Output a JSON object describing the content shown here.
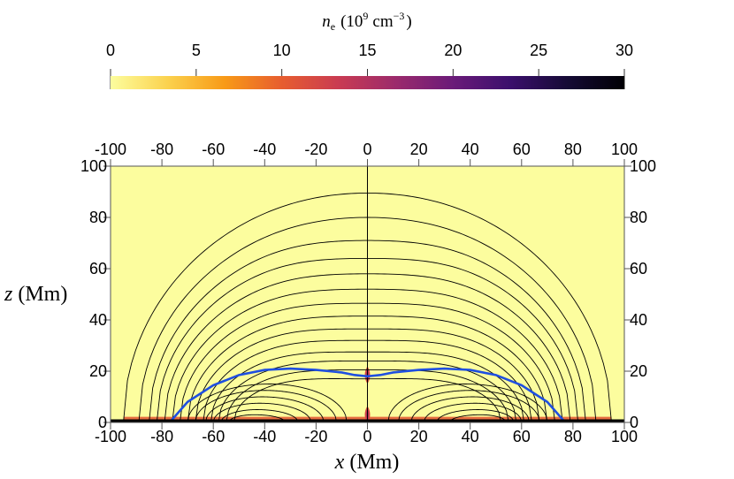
{
  "chart_data": {
    "type": "heatmap",
    "colorbar": {
      "label_var": "n",
      "label_sub": "e",
      "label_unit_base": "(10",
      "label_unit_exp": "9",
      "label_unit_cm": "cm",
      "label_unit_cm_exp": "−3",
      "label_close": ")",
      "range": [
        0,
        30
      ],
      "ticks": [
        "0",
        "5",
        "10",
        "15",
        "20",
        "25",
        "30"
      ],
      "tick_values": [
        0,
        5,
        10,
        15,
        20,
        25,
        30
      ],
      "colormap": "inferno_r",
      "stops": [
        "#fcfd9e",
        "#fbd24e",
        "#f89a17",
        "#e75d2f",
        "#c93b52",
        "#9b2a6c",
        "#6a1b79",
        "#3b0f6c",
        "#150a35",
        "#000004"
      ]
    },
    "xlabel_var": "x",
    "xlabel_unit": "(Mm)",
    "ylabel_var": "z",
    "ylabel_unit": "(Mm)",
    "xlim": [
      -100,
      100
    ],
    "ylim": [
      0,
      100
    ],
    "x_ticks": [
      "-100",
      "-80",
      "-60",
      "-40",
      "-20",
      "0",
      "20",
      "40",
      "60",
      "80",
      "100"
    ],
    "x_tick_values": [
      -100,
      -80,
      -60,
      -40,
      -20,
      0,
      20,
      40,
      60,
      80,
      100
    ],
    "y_ticks": [
      "0",
      "20",
      "40",
      "60",
      "80",
      "100"
    ],
    "y_tick_values": [
      0,
      20,
      40,
      60,
      80,
      100
    ],
    "background_density": 0.5,
    "field_lines": {
      "color": "#000000",
      "apex_heights": [
        90,
        81,
        74,
        68,
        62,
        56.5,
        51.5,
        46.5,
        42,
        37.5,
        33,
        29,
        25.5,
        22.5
      ],
      "center_heights": [
        89.5,
        80,
        71,
        64,
        58,
        52,
        46.5,
        41.5,
        36.5,
        32,
        27.5,
        24,
        20.5,
        17
      ],
      "footpoints": [
        95,
        89,
        85,
        82,
        79,
        76,
        73,
        70,
        67,
        64,
        61,
        58,
        55,
        52
      ],
      "inner_loops": [
        {
          "peak_x": 38,
          "peak_z": 15,
          "foot_in": 8,
          "foot_out": 70
        },
        {
          "peak_x": 40,
          "peak_z": 12.5,
          "foot_in": 12,
          "foot_out": 67
        },
        {
          "peak_x": 41,
          "peak_z": 10,
          "foot_in": 17,
          "foot_out": 63
        },
        {
          "peak_x": 42,
          "peak_z": 7.5,
          "foot_in": 22,
          "foot_out": 60
        },
        {
          "peak_x": 43,
          "peak_z": 5,
          "foot_in": 27,
          "foot_out": 57
        },
        {
          "peak_x": 44,
          "peak_z": 3,
          "foot_in": 32,
          "foot_out": 54
        }
      ]
    },
    "separatrix": {
      "color": "#1f4fe0",
      "x": [
        -77,
        -70,
        -60,
        -50,
        -40,
        -30,
        -20,
        -10,
        -5,
        0,
        5,
        10,
        20,
        30,
        40,
        50,
        60,
        70,
        77
      ],
      "z": [
        0,
        8,
        14.5,
        18.5,
        20.5,
        21,
        20.5,
        19.5,
        18.5,
        18,
        18.5,
        19.5,
        20.5,
        21,
        20.5,
        18.5,
        14.5,
        8,
        0
      ]
    },
    "density_features": [
      {
        "name": "upper-null-enhancement",
        "x": 0,
        "z": 18.5,
        "density": 14
      },
      {
        "name": "lower-null-enhancement",
        "x": 0,
        "z": 3,
        "density": 14
      }
    ],
    "chromosphere": {
      "z_top": 1.2,
      "density": 30
    }
  }
}
